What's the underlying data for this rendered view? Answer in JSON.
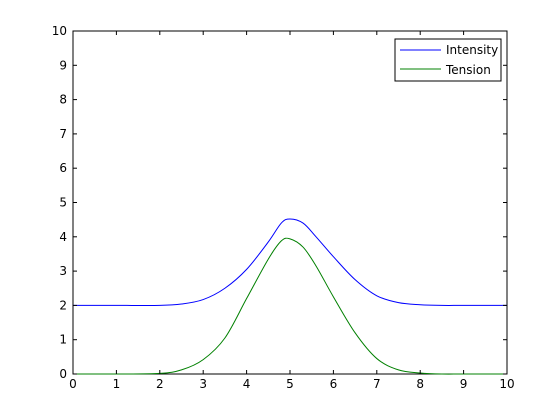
{
  "chart_data": {
    "type": "line",
    "xlim": [
      0,
      10
    ],
    "ylim": [
      0,
      10
    ],
    "x_ticks": [
      "0",
      "1",
      "2",
      "3",
      "4",
      "5",
      "6",
      "7",
      "8",
      "9",
      "10"
    ],
    "y_ticks": [
      "0",
      "1",
      "2",
      "3",
      "4",
      "5",
      "6",
      "7",
      "8",
      "9",
      "10"
    ],
    "grid": false,
    "legend_position": "top-right",
    "series": [
      {
        "name": "Intensity",
        "color": "#0000ff",
        "x": [
          0,
          1,
          2,
          2.5,
          3,
          3.5,
          4,
          4.5,
          4.8,
          5,
          5.3,
          5.6,
          6,
          6.5,
          7,
          7.5,
          8,
          8.5,
          9,
          10
        ],
        "y": [
          2.0,
          2.0,
          2.0,
          2.04,
          2.17,
          2.5,
          3.05,
          3.85,
          4.4,
          4.52,
          4.4,
          4.0,
          3.42,
          2.75,
          2.28,
          2.08,
          2.02,
          2.0,
          2.0,
          2.0
        ]
      },
      {
        "name": "Tension",
        "color": "#008000",
        "x": [
          0,
          1,
          2,
          2.5,
          3,
          3.5,
          4,
          4.5,
          4.8,
          5,
          5.3,
          5.6,
          6,
          6.5,
          7,
          7.5,
          8,
          8.5,
          9,
          10
        ],
        "y": [
          0.0,
          0.0,
          0.02,
          0.12,
          0.42,
          1.05,
          2.2,
          3.35,
          3.88,
          3.94,
          3.7,
          3.15,
          2.25,
          1.2,
          0.45,
          0.12,
          0.03,
          0.0,
          0.0,
          0.0
        ]
      }
    ]
  }
}
